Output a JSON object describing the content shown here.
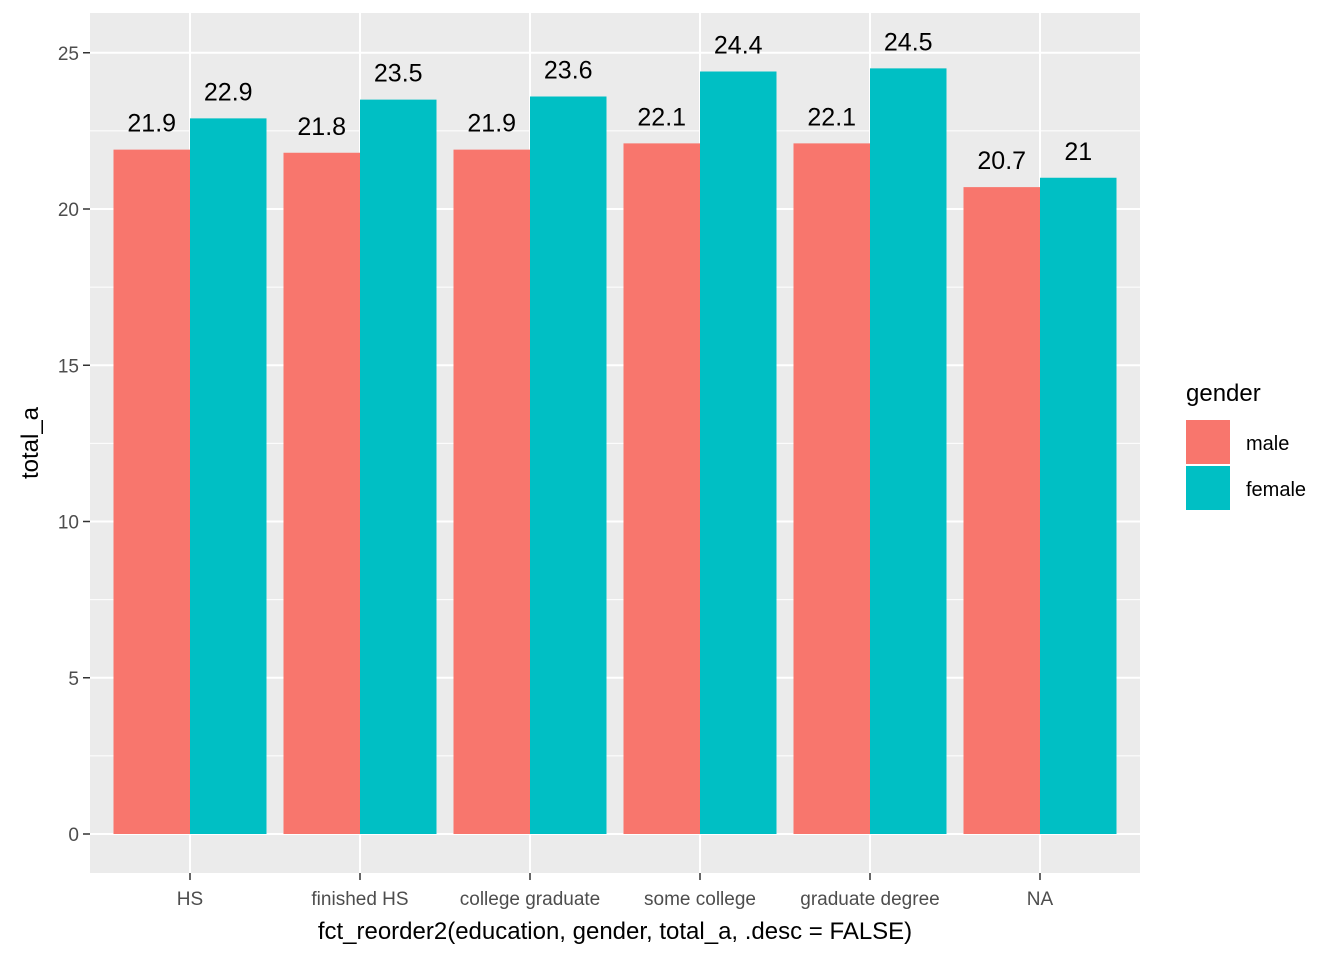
{
  "chart_data": {
    "type": "bar",
    "title": "",
    "xlabel": "fct_reorder2(education, gender, total_a, .desc = FALSE)",
    "ylabel": "total_a",
    "categories": [
      "HS",
      "finished HS",
      "college graduate",
      "some college",
      "graduate degree",
      "NA"
    ],
    "series": [
      {
        "name": "male",
        "color": "#F8766D",
        "values": [
          21.9,
          21.8,
          21.9,
          22.1,
          22.1,
          20.7
        ],
        "labels": [
          "21.9",
          "21.8",
          "21.9",
          "22.1",
          "22.1",
          "20.7"
        ]
      },
      {
        "name": "female",
        "color": "#00BFC4",
        "values": [
          22.9,
          23.5,
          23.6,
          24.4,
          24.5,
          21.0
        ],
        "labels": [
          "22.9",
          "23.5",
          "23.6",
          "24.4",
          "24.5",
          "21"
        ]
      }
    ],
    "ylim": [
      0,
      26.2
    ],
    "y_ticks": [
      0,
      5,
      10,
      15,
      20,
      25
    ],
    "y_tick_labels": [
      "0",
      "5",
      "10",
      "15",
      "20",
      "25"
    ],
    "grid": true,
    "legend": {
      "title": "gender",
      "position": "right"
    }
  },
  "colors": {
    "panel_bg": "#EBEBEB",
    "grid_line": "#FFFFFF",
    "tick": "#333333"
  }
}
